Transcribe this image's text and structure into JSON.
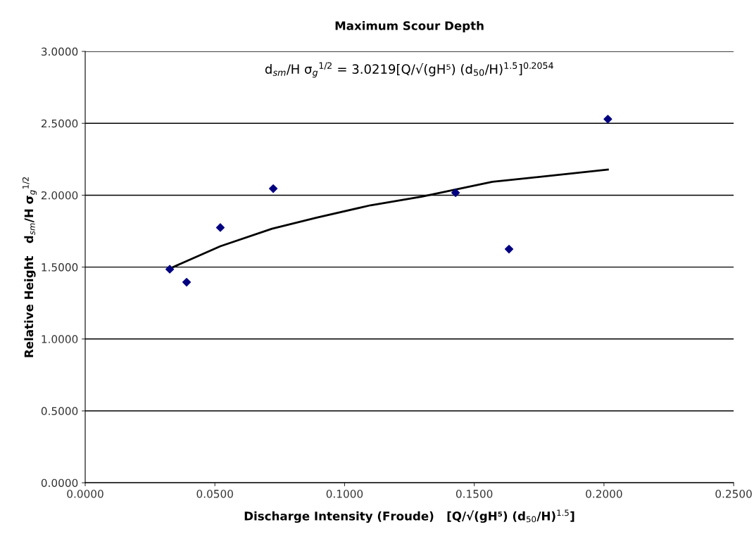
{
  "chart_data": {
    "type": "scatter",
    "title": "Maximum Scour Depth",
    "xlabel": "Discharge Intensity (Froude)   [Q/√(gH⁵) (d$_{50}$/H)$^{1.5}$]",
    "ylabel": "Relative Height   d$_{sm}$/H σ$_{g}$$^{1/2}$",
    "annotations": [
      "d$_{sm}$/H σ$_{g}$$^{1/2}$ = 3.0219[Q/√(gH⁵) (d$_{50}$/H)$^{1.5}$]$^{0.2054}$"
    ],
    "series": [
      {
        "color": "#000080",
        "marker": "diamond",
        "x": [
          0.0326,
          0.0391,
          0.0521,
          0.0725,
          0.1428,
          0.1634,
          0.2015
        ],
        "values": [
          1.485,
          1.395,
          1.775,
          2.046,
          2.017,
          1.625,
          2.529
        ]
      },
      {
        "type": "line",
        "color": "#000000",
        "line_style": "solid",
        "x": [
          0.0326,
          0.0521,
          0.072,
          0.0892,
          0.11,
          0.1299,
          0.157,
          0.2015
        ],
        "values": [
          1.49,
          1.645,
          1.767,
          1.844,
          1.93,
          1.991,
          2.093,
          2.178
        ]
      }
    ],
    "xlim": [
      0,
      0.25
    ],
    "xticks": [
      {
        "value": 0,
        "label": "0.0000"
      },
      {
        "value": 0.05,
        "label": "0.0500"
      },
      {
        "value": 0.1,
        "label": "0.1000"
      },
      {
        "value": 0.15,
        "label": "0.1500"
      },
      {
        "value": 0.2,
        "label": "0.2000"
      },
      {
        "value": 0.25,
        "label": "0.2500"
      }
    ],
    "ylim": [
      0,
      3
    ],
    "yticks": [
      {
        "value": 0,
        "label": "0.0000"
      },
      {
        "value": 0.5,
        "label": "0.5000"
      },
      {
        "value": 1,
        "label": "1.0000"
      },
      {
        "value": 1.5,
        "label": "1.5000"
      },
      {
        "value": 2,
        "label": "2.0000"
      },
      {
        "value": 2.5,
        "label": "2.5000"
      },
      {
        "value": 3,
        "label": "3.0000"
      }
    ],
    "grid": "y"
  }
}
